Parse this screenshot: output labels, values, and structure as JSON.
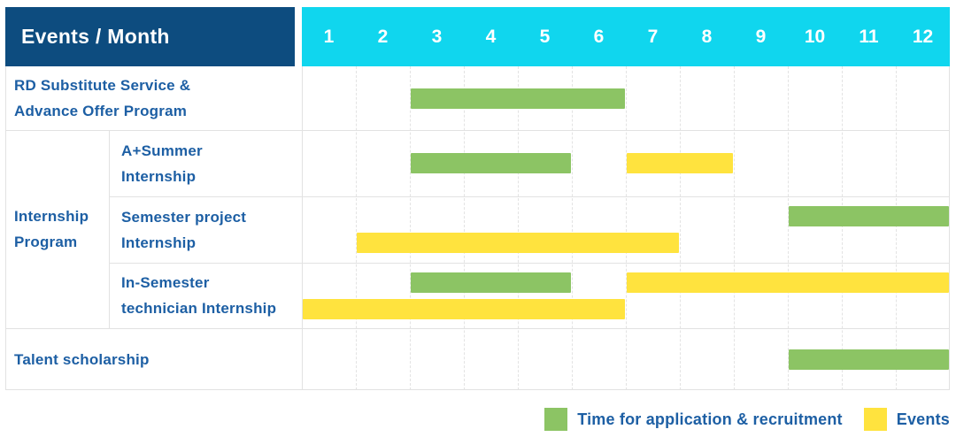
{
  "header": {
    "title": "Events / Month",
    "months": [
      "1",
      "2",
      "3",
      "4",
      "5",
      "6",
      "7",
      "8",
      "9",
      "10",
      "11",
      "12"
    ]
  },
  "colors": {
    "header_bg": "#0D4C7F",
    "months_bg": "#10D6EE",
    "application_green": "#8CC464",
    "events_yellow": "#FFE33E",
    "label_blue": "#1D5FA4",
    "grid_gray": "#E2E2E2"
  },
  "legend": [
    {
      "series": "application",
      "label": "Time for application & recruitment",
      "color": "#8CC464"
    },
    {
      "series": "events",
      "label": "Events",
      "color": "#FFE33E"
    }
  ],
  "chart_data": {
    "type": "bar",
    "subtype": "gantt-schedule",
    "title": "Events / Month",
    "x_axis": {
      "label": "Month",
      "categories": [
        "1",
        "2",
        "3",
        "4",
        "5",
        "6",
        "7",
        "8",
        "9",
        "10",
        "11",
        "12"
      ],
      "range": [
        1,
        12
      ]
    },
    "series_legend": [
      {
        "name": "Time for application & recruitment",
        "color": "#8CC464"
      },
      {
        "name": "Events",
        "color": "#FFE33E"
      }
    ],
    "groups": [
      {
        "label": "Internship Program",
        "label_lines": [
          "Internship",
          "Program"
        ],
        "row_indexes": [
          1,
          2,
          3
        ]
      }
    ],
    "rows": [
      {
        "label": "RD Substitute Service & Advance Offer Program",
        "label_lines": [
          "RD Substitute Service &",
          "Advance Offer Program"
        ],
        "group": null,
        "bar_lines": [
          [
            {
              "series": "application",
              "start_month": 3,
              "end_month": 6
            }
          ]
        ]
      },
      {
        "label": "A+Summer Internship",
        "label_lines": [
          "A+Summer",
          "Internship"
        ],
        "group": "Internship Program",
        "bar_lines": [
          [
            {
              "series": "application",
              "start_month": 3,
              "end_month": 5
            },
            {
              "series": "events",
              "start_month": 7,
              "end_month": 8
            }
          ]
        ]
      },
      {
        "label": "Semester project Internship",
        "label_lines": [
          "Semester project",
          "Internship"
        ],
        "group": "Internship Program",
        "bar_lines": [
          [
            {
              "series": "application",
              "start_month": 10,
              "end_month": 12
            }
          ],
          [
            {
              "series": "events",
              "start_month": 2,
              "end_month": 7
            }
          ]
        ]
      },
      {
        "label": "In-Semester technician Internship",
        "label_lines": [
          "In-Semester",
          "technician Internship"
        ],
        "group": "Internship Program",
        "bar_lines": [
          [
            {
              "series": "application",
              "start_month": 3,
              "end_month": 5
            },
            {
              "series": "events",
              "start_month": 7,
              "end_month": 12
            }
          ],
          [
            {
              "series": "events",
              "start_month": 1,
              "end_month": 6
            }
          ]
        ]
      },
      {
        "label": "Talent scholarship",
        "label_lines": [
          "Talent scholarship"
        ],
        "group": null,
        "bar_lines": [
          [
            {
              "series": "application",
              "start_month": 10,
              "end_month": 12
            }
          ]
        ]
      }
    ]
  }
}
